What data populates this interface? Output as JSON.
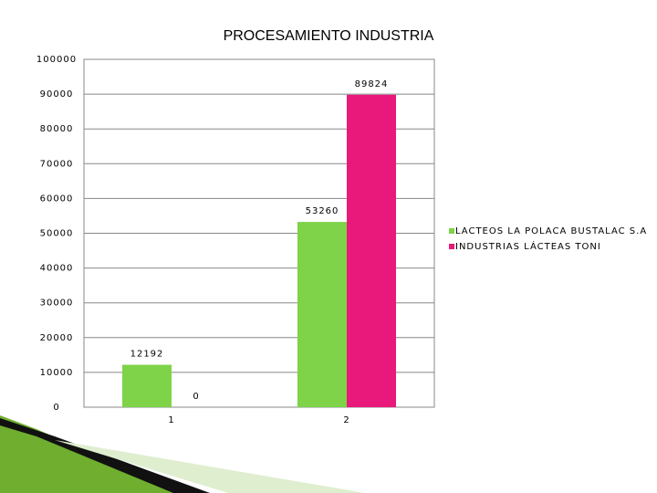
{
  "chart_data": {
    "type": "bar",
    "title": "PROCESAMIENTO INDUSTRIA",
    "categories": [
      "1",
      "2"
    ],
    "series": [
      {
        "name": "LACTEOS LA POLACA BUSTALAC S.A",
        "color": "#7ed348",
        "values": [
          12192,
          53260
        ]
      },
      {
        "name": "INDUSTRIAS LÁCTEAS TONI",
        "color": "#e8197a",
        "values": [
          0,
          89824
        ]
      }
    ],
    "ylim": [
      0,
      100000
    ],
    "yticks": [
      0,
      10000,
      20000,
      30000,
      40000,
      50000,
      60000,
      70000,
      80000,
      90000,
      100000
    ],
    "grid": true,
    "legend": "right"
  }
}
